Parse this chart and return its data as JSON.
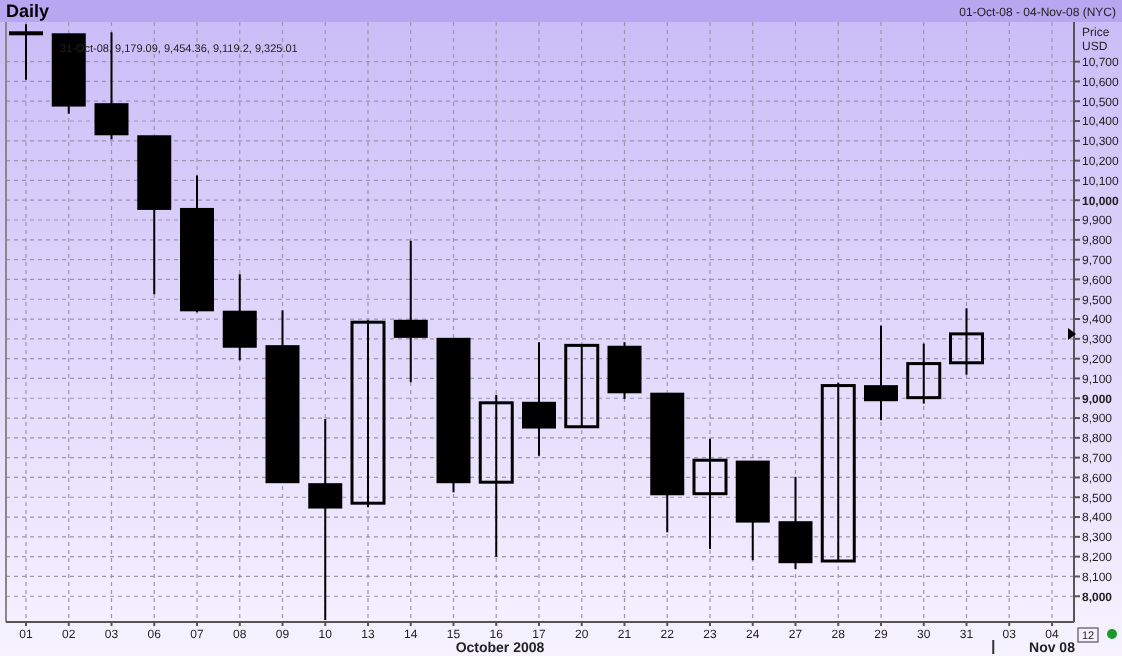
{
  "chart_data": {
    "type": "candlestick",
    "title": "Daily",
    "subtitle": "01-Oct-08 - 04-Nov-08 (NYC)",
    "ylabel": "Price USD",
    "xlabel": "October 2008",
    "annotations": [
      "31-Oct-08, 9,179.09, 9,454.36, 9,119.2, 9,325.01",
      "Nov 08",
      "12"
    ],
    "categories": [
      "01",
      "02",
      "03",
      "06",
      "07",
      "08",
      "09",
      "10",
      "13",
      "14",
      "15",
      "16",
      "17",
      "20",
      "21",
      "22",
      "23",
      "24",
      "27",
      "28",
      "29",
      "30",
      "31",
      "03",
      "04"
    ],
    "ohlc": [
      [
        10848,
        10889,
        10608,
        10840
      ],
      [
        10838,
        10840,
        10437,
        10478
      ],
      [
        10485,
        10848,
        10307,
        10333
      ],
      [
        10323,
        10323,
        9525,
        9956
      ],
      [
        9956,
        10125,
        9434,
        9444
      ],
      [
        9437,
        9626,
        9192,
        9260
      ],
      [
        9263,
        9444,
        8576,
        8576
      ],
      [
        8566,
        8896,
        7880,
        8448
      ],
      [
        8470,
        9394,
        8450,
        9384
      ],
      [
        9391,
        9795,
        9081,
        9310
      ],
      [
        9300,
        9303,
        8525,
        8576
      ],
      [
        8576,
        9017,
        8199,
        8977
      ],
      [
        8977,
        9283,
        8710,
        8852
      ],
      [
        8856,
        9267,
        8856,
        9267
      ],
      [
        9260,
        9283,
        8997,
        9030
      ],
      [
        9023,
        9023,
        8323,
        8515
      ],
      [
        8518,
        8795,
        8239,
        8687
      ],
      [
        8680,
        8680,
        8182,
        8377
      ],
      [
        8374,
        8603,
        8138,
        8172
      ],
      [
        8178,
        9078,
        8178,
        9064
      ],
      [
        9061,
        9367,
        8889,
        8990
      ],
      [
        9003,
        9276,
        8973,
        9175
      ],
      [
        9179.09,
        9454.36,
        9119.2,
        9325.01
      ],
      null,
      null
    ],
    "ylim": [
      7870,
      10900
    ],
    "yticks": [
      {
        "value": 8000,
        "label": "8,000"
      },
      {
        "value": 8100,
        "label": "8,100"
      },
      {
        "value": 8200,
        "label": "8,200"
      },
      {
        "value": 8300,
        "label": "8,300"
      },
      {
        "value": 8400,
        "label": "8,400"
      },
      {
        "value": 8500,
        "label": "8,500"
      },
      {
        "value": 8600,
        "label": "8,600"
      },
      {
        "value": 8700,
        "label": "8,700"
      },
      {
        "value": 8800,
        "label": "8,800"
      },
      {
        "value": 8900,
        "label": "8,900"
      },
      {
        "value": 9000,
        "label": "9,000"
      },
      {
        "value": 9100,
        "label": "9,100"
      },
      {
        "value": 9200,
        "label": "9,200"
      },
      {
        "value": 9300,
        "label": "9,300"
      },
      {
        "value": 9400,
        "label": "9,400"
      },
      {
        "value": 9500,
        "label": "9,500"
      },
      {
        "value": 9600,
        "label": "9,600"
      },
      {
        "value": 9700,
        "label": "9,700"
      },
      {
        "value": 9800,
        "label": "9,800"
      },
      {
        "value": 9900,
        "label": "9,900"
      },
      {
        "value": 10000,
        "label": "10,000"
      },
      {
        "value": 10100,
        "label": "10,100"
      },
      {
        "value": 10200,
        "label": "10,200"
      },
      {
        "value": 10300,
        "label": "10,300"
      },
      {
        "value": 10400,
        "label": "10,400"
      },
      {
        "value": 10500,
        "label": "10,500"
      },
      {
        "value": 10600,
        "label": "10,600"
      },
      {
        "value": 10700,
        "label": "10,700"
      }
    ],
    "grid": true
  }
}
